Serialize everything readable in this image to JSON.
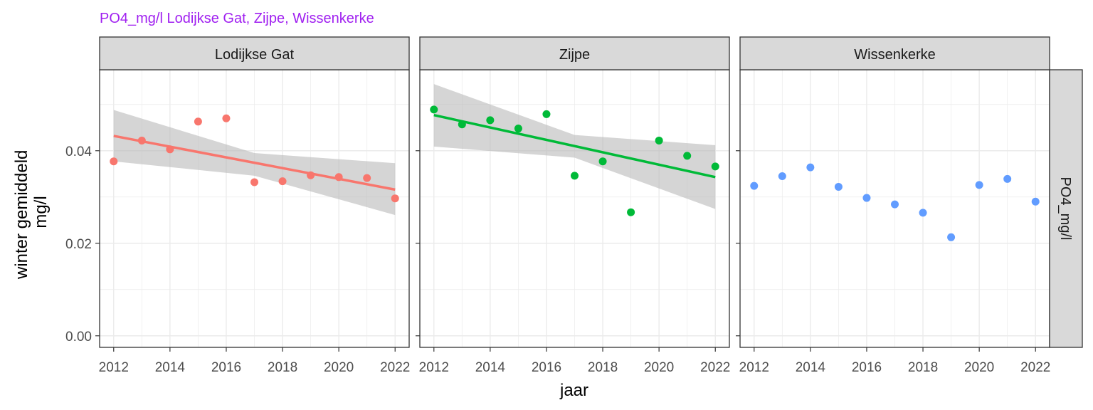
{
  "chart_data": {
    "type": "scatter",
    "title": "PO4_mg/l Lodijkse Gat, Zijpe, Wissenkerke",
    "xlabel": "jaar",
    "ylabel_lines": [
      "winter gemiddeld",
      "mg/l"
    ],
    "row_strip": "PO4_mg/l",
    "xlim": [
      2011.5,
      2022.5
    ],
    "ylim": [
      -0.0025,
      0.0575
    ],
    "x_ticks": [
      2012,
      2014,
      2016,
      2018,
      2020,
      2022
    ],
    "y_ticks": [
      0.0,
      0.02,
      0.04
    ],
    "y_tick_labels": [
      "0.00",
      "0.02",
      "0.04"
    ],
    "grid": true,
    "panels": [
      {
        "name": "Lodijkse Gat",
        "color": "#F8766D",
        "x": [
          2012,
          2013,
          2014,
          2015,
          2016,
          2017,
          2018,
          2019,
          2020,
          2021,
          2022
        ],
        "y": [
          0.0377,
          0.0422,
          0.0403,
          0.0463,
          0.047,
          0.0332,
          0.0334,
          0.0347,
          0.0343,
          0.0341,
          0.0297
        ],
        "trend": {
          "x": [
            2012,
            2022
          ],
          "y": [
            0.0432,
            0.0316
          ]
        },
        "band": {
          "x": [
            2012,
            2017,
            2022
          ],
          "upper": [
            0.0488,
            0.0395,
            0.0373
          ],
          "lower": [
            0.0377,
            0.0346,
            0.0261
          ]
        }
      },
      {
        "name": "Zijpe",
        "color": "#00BA38",
        "x": [
          2012,
          2013,
          2014,
          2015,
          2016,
          2017,
          2018,
          2019,
          2020,
          2021,
          2022
        ],
        "y": [
          0.0489,
          0.0457,
          0.0466,
          0.0448,
          0.0479,
          0.0346,
          0.0377,
          0.0267,
          0.0422,
          0.0389,
          0.0366
        ],
        "trend": {
          "x": [
            2012,
            2022
          ],
          "y": [
            0.0477,
            0.0343
          ]
        },
        "band": {
          "x": [
            2012,
            2017,
            2022
          ],
          "upper": [
            0.0544,
            0.0434,
            0.0412
          ],
          "lower": [
            0.0409,
            0.0385,
            0.0274
          ]
        }
      },
      {
        "name": "Wissenkerke",
        "color": "#619CFF",
        "x": [
          2012,
          2013,
          2014,
          2015,
          2016,
          2017,
          2018,
          2019,
          2020,
          2021,
          2022
        ],
        "y": [
          0.0324,
          0.0345,
          0.0364,
          0.0322,
          0.0298,
          0.0284,
          0.0266,
          0.0213,
          0.0326,
          0.0339,
          0.029
        ]
      }
    ]
  },
  "colors": {
    "title": "#A020F0",
    "strip_bg": "#D9D9D9",
    "grid": "#EBEBEB",
    "band": "#B3B3B3"
  }
}
